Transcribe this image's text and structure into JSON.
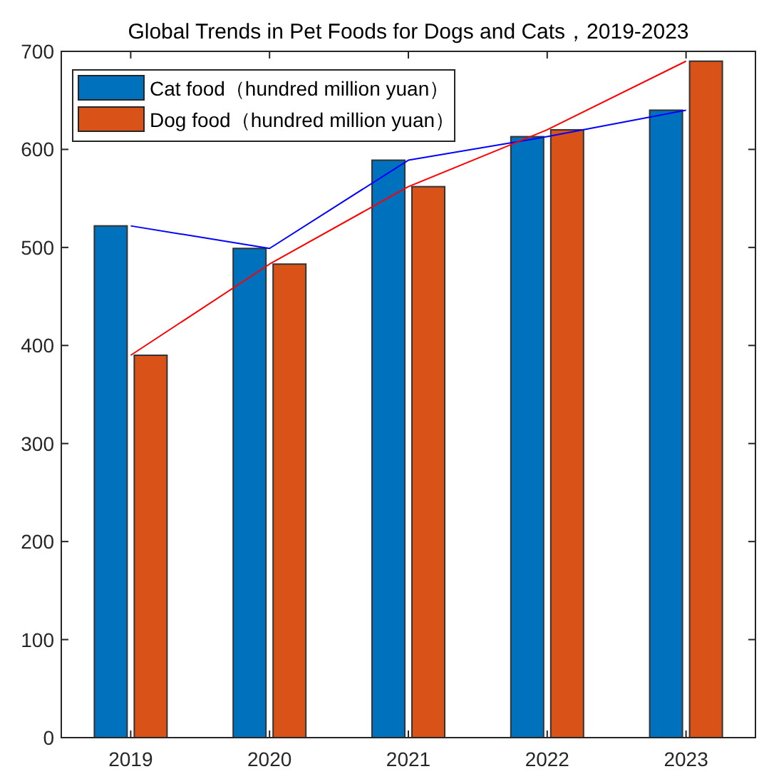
{
  "chart_data": {
    "type": "bar",
    "title": "Global Trends in Pet Foods for Dogs and Cats，2019-2023",
    "categories": [
      "2019",
      "2020",
      "2021",
      "2022",
      "2023"
    ],
    "series": [
      {
        "name": "Cat food（hundred million yuan）",
        "color": "#0072bd",
        "values": [
          522,
          499,
          589,
          613,
          640
        ]
      },
      {
        "name": "Dog food（hundred million yuan）",
        "color": "#d95319",
        "values": [
          390,
          483,
          562,
          620,
          690
        ]
      },
      {
        "type": "line",
        "color": "#0000ff",
        "values": [
          522,
          499,
          589,
          613,
          640
        ]
      },
      {
        "type": "line",
        "color": "#ff0000",
        "values": [
          390,
          483,
          562,
          620,
          690
        ]
      }
    ],
    "ylim": [
      0,
      700
    ],
    "yticks": [
      0,
      100,
      200,
      300,
      400,
      500,
      600,
      700
    ],
    "grid": false,
    "legend": "top left"
  }
}
